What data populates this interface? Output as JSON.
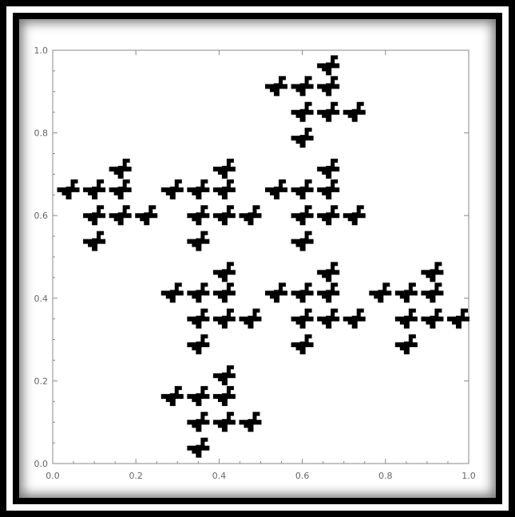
{
  "chart_data": {
    "type": "scatter",
    "title": "",
    "xlabel": "",
    "ylabel": "",
    "xlim": [
      0.0,
      1.0
    ],
    "ylim": [
      0.0,
      1.0
    ],
    "x_ticks": [
      "0.0",
      "0.2",
      "0.4",
      "0.6",
      "0.8",
      "1.0"
    ],
    "y_ticks": [
      "0.0",
      "0.2",
      "0.4",
      "0.6",
      "0.8",
      "1.0"
    ],
    "grid": false,
    "marker": "pinwheel",
    "marker_color": "#000000",
    "axis_color": "#888888",
    "series": [
      {
        "points": [
          [
            0.6625,
            0.9625
          ],
          [
            0.5375,
            0.9125
          ],
          [
            0.6,
            0.9125
          ],
          [
            0.6625,
            0.9125
          ],
          [
            0.6,
            0.85
          ],
          [
            0.6625,
            0.85
          ],
          [
            0.725,
            0.85
          ],
          [
            0.6,
            0.7875
          ],
          [
            0.1625,
            0.7125
          ],
          [
            0.0375,
            0.6625
          ],
          [
            0.1,
            0.6625
          ],
          [
            0.1625,
            0.6625
          ],
          [
            0.1,
            0.6
          ],
          [
            0.1625,
            0.6
          ],
          [
            0.225,
            0.6
          ],
          [
            0.1,
            0.5375
          ],
          [
            0.4125,
            0.7125
          ],
          [
            0.2875,
            0.6625
          ],
          [
            0.35,
            0.6625
          ],
          [
            0.4125,
            0.6625
          ],
          [
            0.35,
            0.6
          ],
          [
            0.4125,
            0.6
          ],
          [
            0.475,
            0.6
          ],
          [
            0.35,
            0.5375
          ],
          [
            0.6625,
            0.7125
          ],
          [
            0.5375,
            0.6625
          ],
          [
            0.6,
            0.6625
          ],
          [
            0.6625,
            0.6625
          ],
          [
            0.6,
            0.6
          ],
          [
            0.6625,
            0.6
          ],
          [
            0.725,
            0.6
          ],
          [
            0.6,
            0.5375
          ],
          [
            0.4125,
            0.4625
          ],
          [
            0.2875,
            0.4125
          ],
          [
            0.35,
            0.4125
          ],
          [
            0.4125,
            0.4125
          ],
          [
            0.35,
            0.35
          ],
          [
            0.4125,
            0.35
          ],
          [
            0.475,
            0.35
          ],
          [
            0.35,
            0.2875
          ],
          [
            0.6625,
            0.4625
          ],
          [
            0.5375,
            0.4125
          ],
          [
            0.6,
            0.4125
          ],
          [
            0.6625,
            0.4125
          ],
          [
            0.6,
            0.35
          ],
          [
            0.6625,
            0.35
          ],
          [
            0.725,
            0.35
          ],
          [
            0.6,
            0.2875
          ],
          [
            0.9125,
            0.4625
          ],
          [
            0.7875,
            0.4125
          ],
          [
            0.85,
            0.4125
          ],
          [
            0.9125,
            0.4125
          ],
          [
            0.85,
            0.35
          ],
          [
            0.9125,
            0.35
          ],
          [
            0.975,
            0.35
          ],
          [
            0.85,
            0.2875
          ],
          [
            0.4125,
            0.2125
          ],
          [
            0.2875,
            0.1625
          ],
          [
            0.35,
            0.1625
          ],
          [
            0.4125,
            0.1625
          ],
          [
            0.35,
            0.1
          ],
          [
            0.4125,
            0.1
          ],
          [
            0.475,
            0.1
          ],
          [
            0.35,
            0.0375
          ]
        ]
      }
    ]
  }
}
